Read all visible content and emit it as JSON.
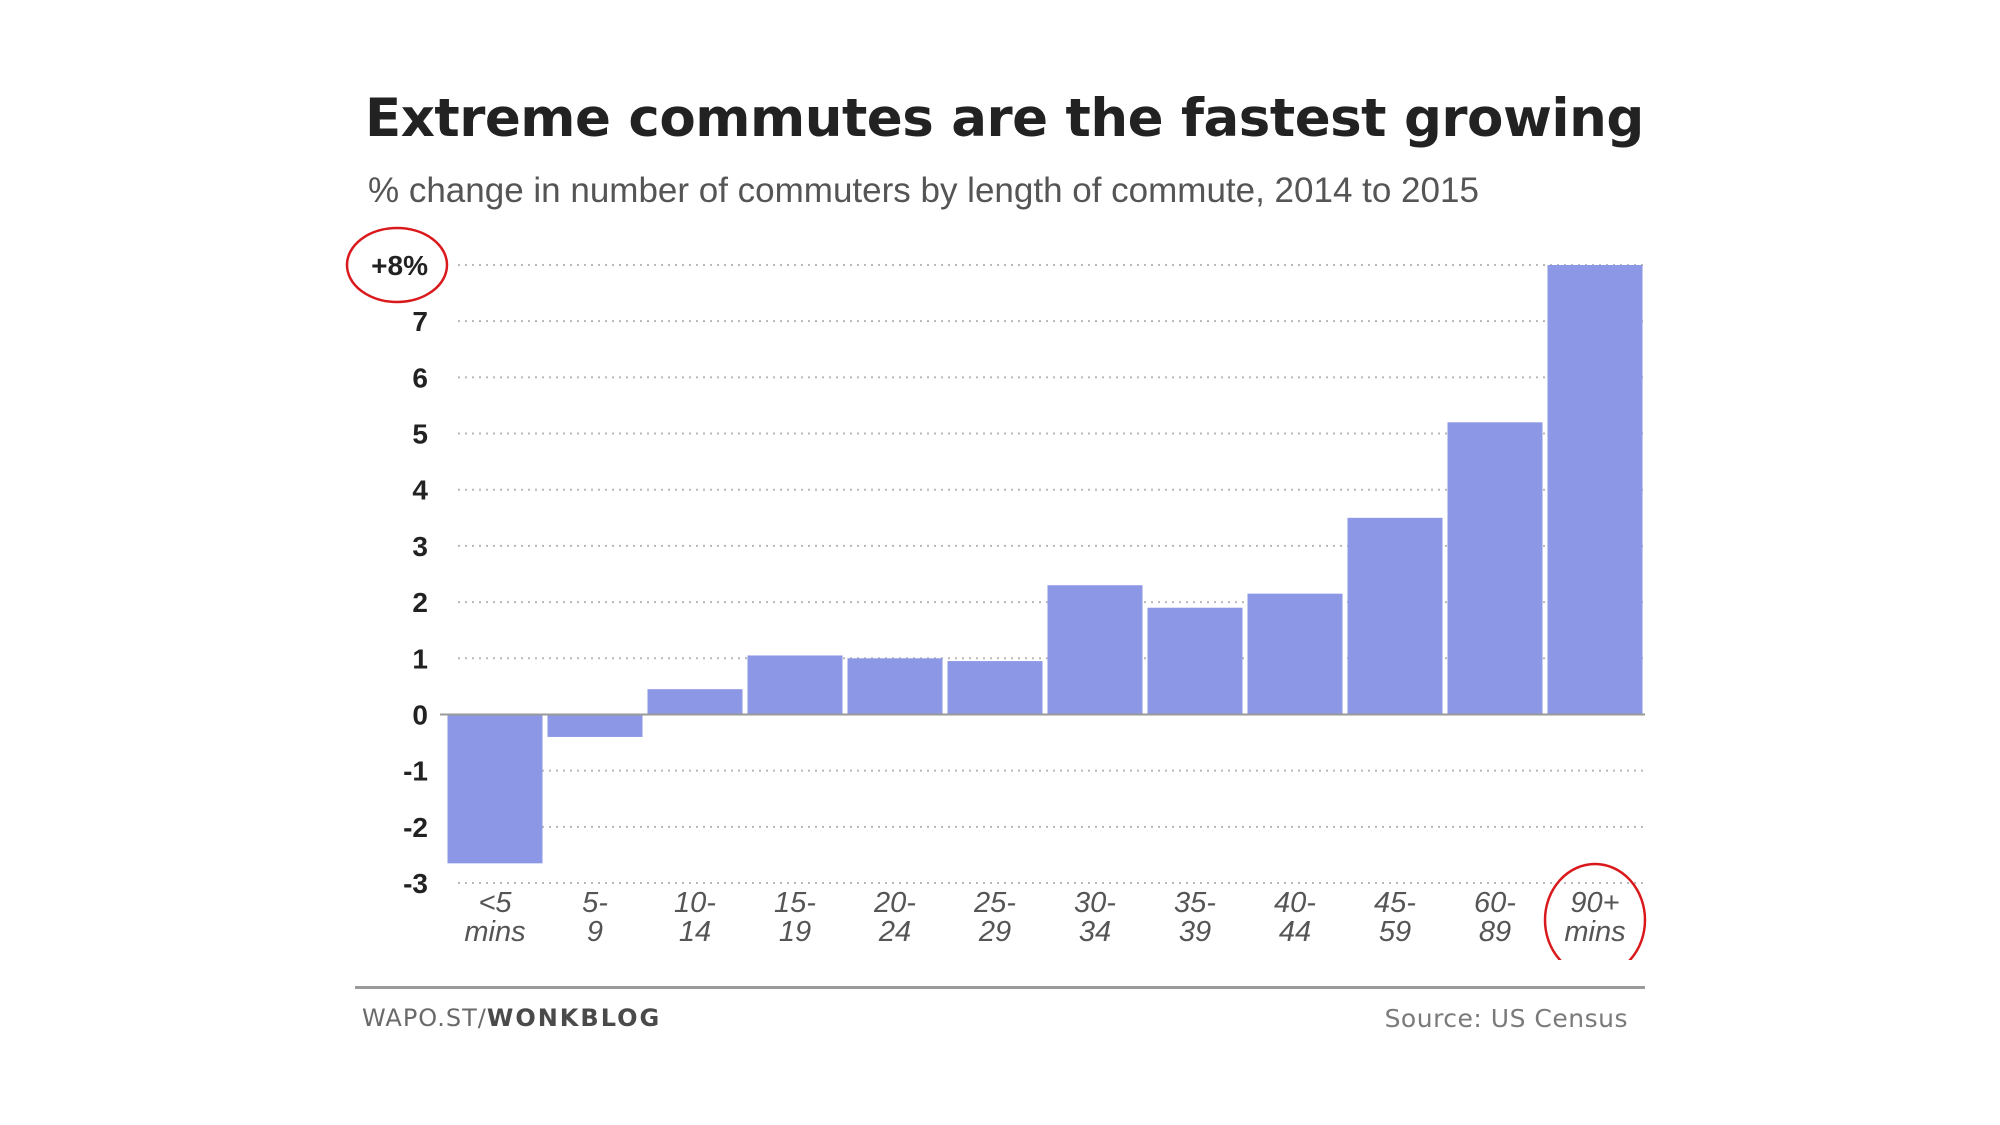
{
  "chart_data": {
    "type": "bar",
    "title": "Extreme commutes are the fastest growing",
    "subtitle": "% change in number of commuters by length of commute, 2014 to 2015",
    "categories": [
      [
        "<5",
        "mins"
      ],
      [
        "5-",
        "9"
      ],
      [
        "10-",
        "14"
      ],
      [
        "15-",
        "19"
      ],
      [
        "20-",
        "24"
      ],
      [
        "25-",
        "29"
      ],
      [
        "30-",
        "34"
      ],
      [
        "35-",
        "39"
      ],
      [
        "40-",
        "44"
      ],
      [
        "45-",
        "59"
      ],
      [
        "60-",
        "89"
      ],
      [
        "90+",
        "mins"
      ]
    ],
    "values": [
      -2.65,
      -0.4,
      0.45,
      1.05,
      1.0,
      0.95,
      2.3,
      1.9,
      2.15,
      3.5,
      5.2,
      8.0
    ],
    "ylim": [
      -3,
      8
    ],
    "yticks": [
      8,
      7,
      6,
      5,
      4,
      3,
      2,
      1,
      0,
      -1,
      -2,
      -3
    ],
    "ytick_labels": [
      "+8%",
      "7",
      "6",
      "5",
      "4",
      "3",
      "2",
      "1",
      "0",
      "-1",
      "-2",
      "-3"
    ],
    "xlabel": "",
    "ylabel": "",
    "grid": true,
    "bar_color": "#8c97e6",
    "highlight_color": "#d9191c",
    "highlighted": [
      "+8%",
      "90+ mins"
    ]
  },
  "footer": {
    "source_prefix": "WAPO.ST/",
    "source_brand": "WONKBLOG",
    "credit": "Source: US Census"
  }
}
